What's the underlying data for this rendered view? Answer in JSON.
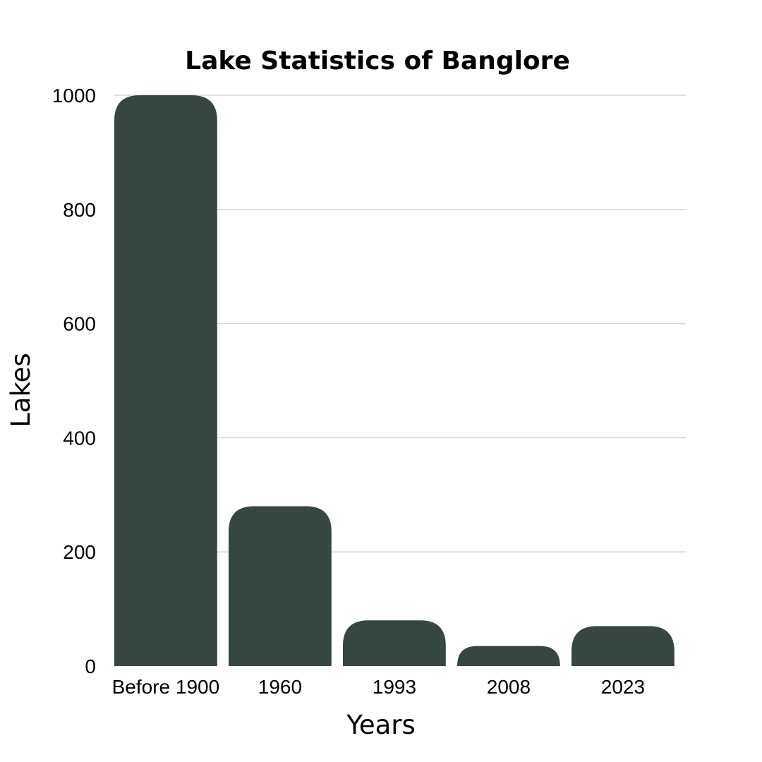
{
  "chart_data": {
    "type": "bar",
    "title": "Lake Statistics of Banglore",
    "xlabel": "Years",
    "ylabel": "Lakes",
    "categories": [
      "Before 1900",
      "1960",
      "1993",
      "2008",
      "2023"
    ],
    "values": [
      1000,
      280,
      80,
      35,
      70
    ],
    "ylim": [
      0,
      1000
    ],
    "yticks": [
      "0",
      "200",
      "400",
      "600",
      "800",
      "1000"
    ],
    "grid": true,
    "bar_color": "#35473e"
  }
}
